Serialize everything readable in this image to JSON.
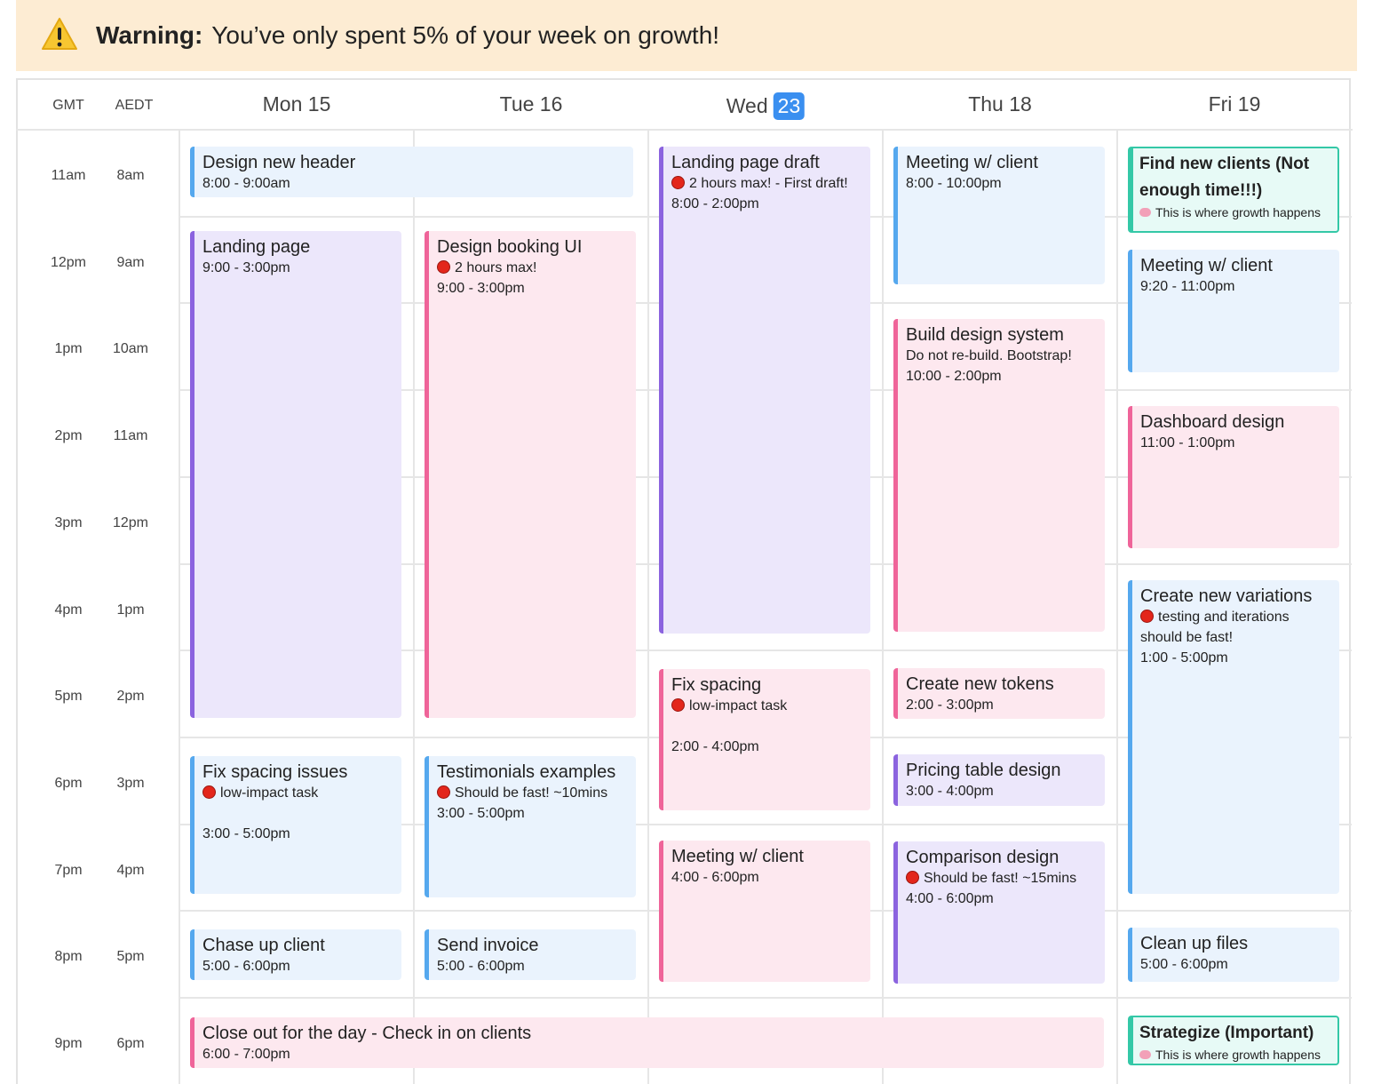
{
  "warning": {
    "label": "Warning:",
    "message": "You’ve only spent 5% of your week on growth!"
  },
  "timezones": [
    "GMT",
    "AEDT"
  ],
  "hours": [
    {
      "gmt": "11am",
      "aedt": "8am"
    },
    {
      "gmt": "12pm",
      "aedt": "9am"
    },
    {
      "gmt": "1pm",
      "aedt": "10am"
    },
    {
      "gmt": "2pm",
      "aedt": "11am"
    },
    {
      "gmt": "3pm",
      "aedt": "12pm"
    },
    {
      "gmt": "4pm",
      "aedt": "1pm"
    },
    {
      "gmt": "5pm",
      "aedt": "2pm"
    },
    {
      "gmt": "6pm",
      "aedt": "3pm"
    },
    {
      "gmt": "7pm",
      "aedt": "4pm"
    },
    {
      "gmt": "8pm",
      "aedt": "5pm"
    },
    {
      "gmt": "9pm",
      "aedt": "6pm"
    }
  ],
  "days": [
    {
      "name": "Mon 15"
    },
    {
      "name": "Tue 16"
    },
    {
      "name": "Wed",
      "date": "23"
    },
    {
      "name": "Thu 18"
    },
    {
      "name": "Fri 19"
    }
  ],
  "events": [
    {
      "title": "Design new header",
      "time": "8:00 - 9:00am"
    },
    {
      "title": "Landing page",
      "time": "9:00 - 3:00pm"
    },
    {
      "title": "Fix spacing issues",
      "note": "low-impact task",
      "time": "3:00 - 5:00pm"
    },
    {
      "title": "Chase up client",
      "time": "5:00 - 6:00pm"
    },
    {
      "title": "Close out for the day - Check in on clients",
      "time": "6:00 - 7:00pm"
    },
    {
      "title": "Design booking UI",
      "note": "2 hours max!",
      "time": "9:00 - 3:00pm"
    },
    {
      "title": "Testimonials examples",
      "note": "Should be fast! ~10mins",
      "time": "3:00 - 5:00pm"
    },
    {
      "title": "Send invoice",
      "time": "5:00 - 6:00pm"
    },
    {
      "title": "Landing page draft",
      "note": "2 hours max! - First draft!",
      "time": "8:00 - 2:00pm"
    },
    {
      "title": "Fix spacing",
      "note": "low-impact task",
      "time": "2:00 - 4:00pm"
    },
    {
      "title": "Meeting w/ client",
      "time": "4:00 - 6:00pm"
    },
    {
      "title": "Meeting w/ client",
      "time": "8:00 - 10:00pm"
    },
    {
      "title": "Build design system",
      "note": "Do not re-build. Bootstrap!",
      "time": "10:00 - 2:00pm"
    },
    {
      "title": "Create new tokens",
      "time": "2:00 - 3:00pm"
    },
    {
      "title": "Pricing table design",
      "time": "3:00 - 4:00pm"
    },
    {
      "title": "Comparison design",
      "note": "Should be fast! ~15mins",
      "time": "4:00 - 6:00pm"
    },
    {
      "title": "Find new clients (Not enough time!!!)",
      "note": "This is where growth happens"
    },
    {
      "title": "Meeting w/ client",
      "time": "9:20 - 11:00pm"
    },
    {
      "title": "Dashboard design",
      "time": "11:00 - 1:00pm"
    },
    {
      "title": "Create new variations",
      "note": "testing and iterations should be fast!",
      "time": "1:00 - 5:00pm"
    },
    {
      "title": "Clean up files",
      "time": "5:00 - 6:00pm"
    },
    {
      "title": "Strategize (Important)",
      "note": "This is where growth happens"
    }
  ]
}
